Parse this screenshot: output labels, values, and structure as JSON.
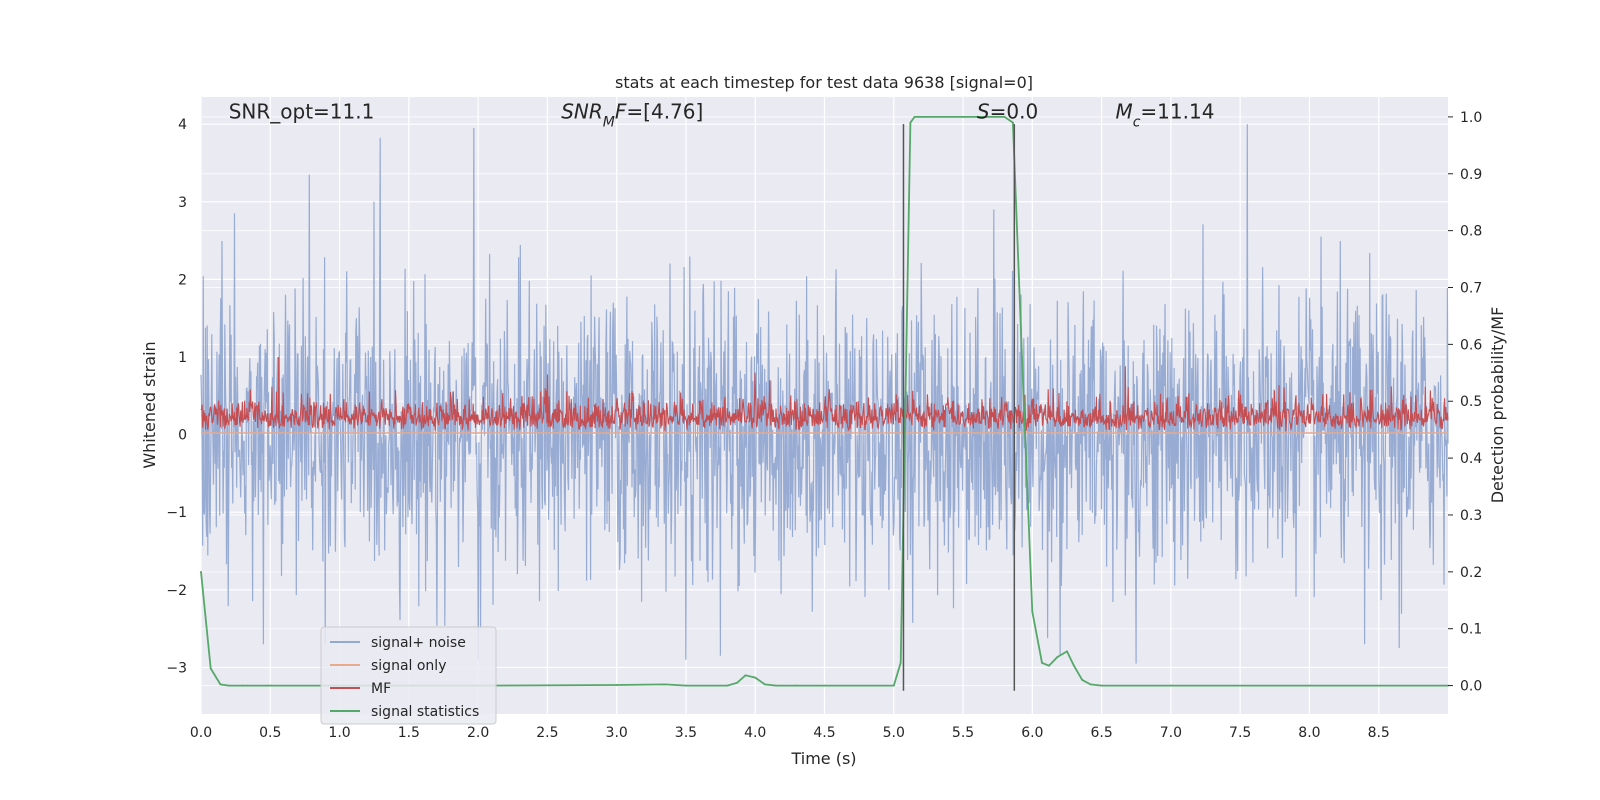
{
  "chart_data": {
    "type": "line",
    "title": "stats at each timestep for test data 9638 [signal=0]",
    "xlabel": "Time (s)",
    "ylabel": "Whitened strain",
    "ylabel_right": "Detection probability/MF",
    "xlim": [
      0.0,
      9.0
    ],
    "ylim": [
      -3.6,
      4.35
    ],
    "ylim_right": [
      -0.05,
      1.035
    ],
    "x_ticks": [
      0.0,
      0.5,
      1.0,
      1.5,
      2.0,
      2.5,
      3.0,
      3.5,
      4.0,
      4.5,
      5.0,
      5.5,
      6.0,
      6.5,
      7.0,
      7.5,
      8.0,
      8.5
    ],
    "x_tick_labels": [
      "0.0",
      "0.5",
      "1.0",
      "1.5",
      "2.0",
      "2.5",
      "3.0",
      "3.5",
      "4.0",
      "4.5",
      "5.0",
      "5.5",
      "6.0",
      "6.5",
      "7.0",
      "7.5",
      "8.0",
      "8.5"
    ],
    "y_ticks": [
      -3,
      -2,
      -1,
      0,
      1,
      2,
      3,
      4
    ],
    "y_tick_labels": [
      "−3",
      "−2",
      "−1",
      "0",
      "1",
      "2",
      "3",
      "4"
    ],
    "y_ticks_right": [
      0.0,
      0.1,
      0.2,
      0.3,
      0.4,
      0.5,
      0.6,
      0.7,
      0.8,
      0.9,
      1.0
    ],
    "y_tick_labels_right": [
      "0.0",
      "0.1",
      "0.2",
      "0.3",
      "0.4",
      "0.5",
      "0.6",
      "0.7",
      "0.8",
      "0.9",
      "1.0"
    ],
    "grid": true,
    "legend_position": "lower-left",
    "annotations": [
      {
        "text": "SNR_opt=11.1",
        "x": 0.2,
        "y": 4.1
      },
      {
        "text": "SNR_MF=[4.76]",
        "x": 2.6,
        "y": 4.1
      },
      {
        "text": "S=0.0",
        "x": 5.6,
        "y": 4.1
      },
      {
        "text": "M_c=11.14",
        "x": 6.6,
        "y": 4.1
      }
    ],
    "vertical_lines": [
      {
        "x": 5.07,
        "ymin": -3.3,
        "ymax": 4.0,
        "color": "#555555"
      },
      {
        "x": 5.87,
        "ymin": -3.3,
        "ymax": 4.0,
        "color": "#555555"
      }
    ],
    "series": [
      {
        "name": "signal+ noise",
        "color": "#92a8d1",
        "axis": "left",
        "kind": "noise",
        "amplitude": 1.05,
        "spikes": [
          {
            "x": 0.78,
            "y": 3.35
          },
          {
            "x": 1.97,
            "y": 3.95
          },
          {
            "x": 7.55,
            "y": 4.0
          },
          {
            "x": 1.25,
            "y": 3.0
          },
          {
            "x": 0.24,
            "y": 2.85
          },
          {
            "x": 5.72,
            "y": 2.9
          },
          {
            "x": 3.75,
            "y": -2.85
          },
          {
            "x": 3.5,
            "y": -2.9
          },
          {
            "x": 8.65,
            "y": -2.75
          },
          {
            "x": 2.0,
            "y": -2.9
          },
          {
            "x": 0.45,
            "y": -2.7
          },
          {
            "x": 6.75,
            "y": -2.95
          },
          {
            "x": 8.4,
            "y": -2.7
          },
          {
            "x": 6.2,
            "y": -2.85
          }
        ]
      },
      {
        "name": "signal only",
        "color": "#e9a98d",
        "axis": "left",
        "kind": "flat",
        "value": 0.02
      },
      {
        "name": "MF",
        "color": "#c44e52",
        "axis": "left",
        "kind": "mf",
        "baseline": 0.0,
        "mean": 0.3,
        "spikes": [
          {
            "x": 0.56,
            "y": 1.0
          },
          {
            "x": 6.67,
            "y": 0.88
          },
          {
            "x": 4.0,
            "y": 0.8
          }
        ]
      },
      {
        "name": "signal statistics",
        "color": "#55a868",
        "axis": "right",
        "kind": "line",
        "x": [
          0.0,
          0.07,
          0.14,
          0.2,
          0.3,
          0.5,
          1.0,
          2.0,
          3.0,
          3.35,
          3.5,
          3.8,
          3.87,
          3.93,
          4.0,
          4.07,
          4.15,
          4.3,
          4.5,
          5.0,
          5.05,
          5.12,
          5.15,
          5.2,
          5.5,
          5.8,
          5.86,
          5.93,
          6.0,
          6.07,
          6.12,
          6.18,
          6.25,
          6.3,
          6.36,
          6.42,
          6.5,
          7.0,
          8.0,
          9.0
        ],
        "y": [
          0.2,
          0.03,
          0.002,
          0.0,
          0.0,
          0.0,
          0.0,
          0.0,
          0.001,
          0.002,
          0.0,
          0.0,
          0.005,
          0.018,
          0.014,
          0.002,
          0.0,
          0.0,
          0.0,
          0.0,
          0.04,
          0.99,
          1.0,
          1.0,
          1.0,
          1.0,
          0.99,
          0.55,
          0.13,
          0.04,
          0.035,
          0.05,
          0.06,
          0.035,
          0.01,
          0.002,
          0.0,
          0.0,
          0.0,
          0.0
        ]
      }
    ]
  }
}
